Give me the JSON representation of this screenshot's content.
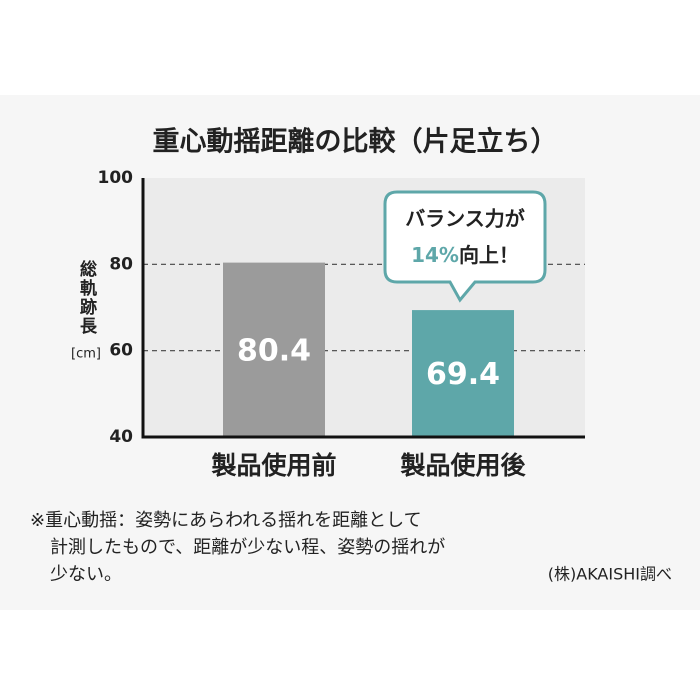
{
  "chart_data": {
    "type": "bar",
    "title": "重心動揺距離の比較（片足立ち）",
    "y_label": "総軌跡長",
    "y_unit": "[cm]",
    "categories": [
      "製品使用前",
      "製品使用後"
    ],
    "values": [
      80.4,
      69.4
    ],
    "colors": [
      "#9b9b9b",
      "#5ea7a9"
    ],
    "ylim": [
      40,
      100
    ],
    "yticks": [
      40,
      60,
      80,
      100
    ],
    "grid": true,
    "callout": {
      "line1": "バランス力が",
      "highlight": "14%",
      "line2": "向上！"
    }
  },
  "notes": [
    "※重心動揺：姿勢にあらわれる揺れを距離として",
    "計測したもので、距離が少ない程、姿勢の揺れが",
    "少ない。"
  ],
  "source": "(株)AKAISHI調べ"
}
